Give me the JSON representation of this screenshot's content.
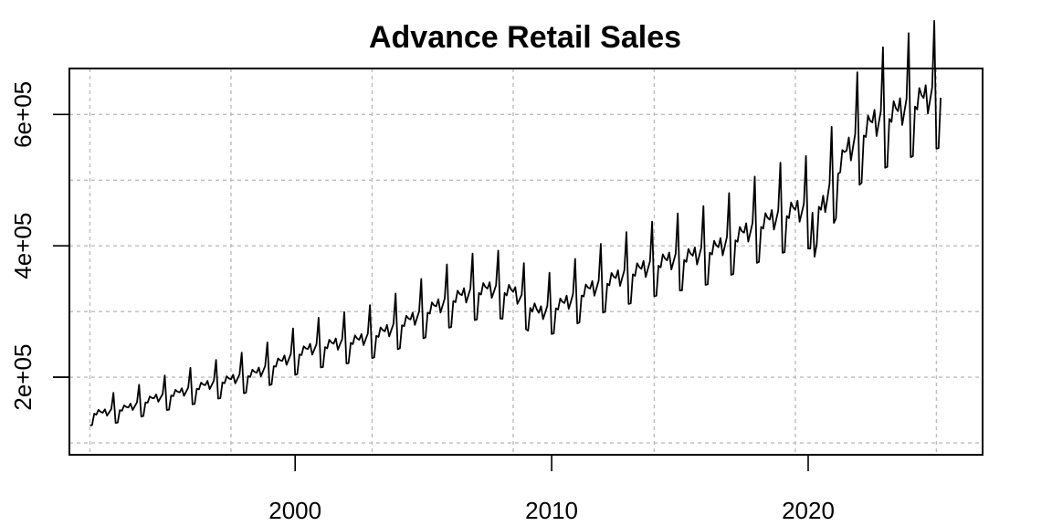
{
  "chart_data": {
    "type": "line",
    "title": "Advance Retail Sales",
    "xlabel": "",
    "ylabel": "",
    "xlim": [
      1991.2,
      2026.8
    ],
    "ylim": [
      82000,
      670000
    ],
    "x_ticks": [
      2000,
      2010,
      2020
    ],
    "x_tick_labels": [
      "2000",
      "2010",
      "2020"
    ],
    "y_ticks": [
      200000,
      400000,
      600000
    ],
    "y_tick_labels": [
      "2e+05",
      "4e+05",
      "6e+05"
    ],
    "grid": true,
    "grid_x": [
      1992,
      1997.5,
      2003,
      2008.5,
      2014,
      2019.5,
      2025
    ],
    "grid_y": [
      100000,
      200000,
      300000,
      400000,
      500000,
      600000,
      700000
    ],
    "legend": "none",
    "colors": {
      "line": "#000000",
      "grid": "#bdbdbd",
      "axis": "#000000"
    },
    "series": [
      {
        "start": 1992.0,
        "step": 0.0833333,
        "annual_trend": [
          [
            1992,
            146000
          ],
          [
            1993,
            154000
          ],
          [
            1994,
            168000
          ],
          [
            1995,
            177000
          ],
          [
            1996,
            188000
          ],
          [
            1997,
            197000
          ],
          [
            1998,
            207000
          ],
          [
            1999,
            225000
          ],
          [
            2000,
            243000
          ],
          [
            2001,
            251000
          ],
          [
            2002,
            257000
          ],
          [
            2003,
            270000
          ],
          [
            2004,
            288000
          ],
          [
            2005,
            308000
          ],
          [
            2006,
            325000
          ],
          [
            2007,
            335000
          ],
          [
            2008,
            330000
          ],
          [
            2009,
            298000
          ],
          [
            2010,
            313000
          ],
          [
            2011,
            335000
          ],
          [
            2012,
            351000
          ],
          [
            2013,
            365000
          ],
          [
            2014,
            378000
          ],
          [
            2015,
            385000
          ],
          [
            2016,
            398000
          ],
          [
            2017,
            420000
          ],
          [
            2018,
            440000
          ],
          [
            2019,
            455000
          ],
          [
            2020,
            455000
          ],
          [
            2021,
            545000
          ],
          [
            2022,
            588000
          ],
          [
            2023,
            605000
          ],
          [
            2024,
            625000
          ],
          [
            2025,
            635000
          ]
        ],
        "monthly_factors": [
          0.87,
          0.87,
          0.99,
          0.98,
          1.03,
          1.01,
          1.0,
          1.03,
          0.96,
          0.99,
          1.02,
          1.18
        ]
      }
    ]
  }
}
